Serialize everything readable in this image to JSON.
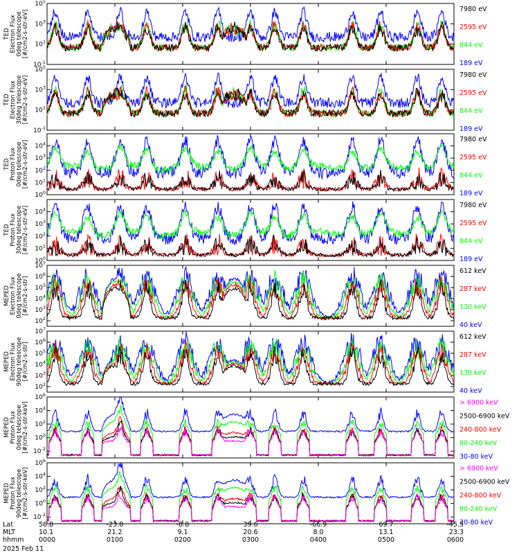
{
  "colors": {
    "black": "#000000",
    "red": "#ff0000",
    "green": "#00ff00",
    "blue": "#0000ff",
    "magenta": "#ff00ff"
  },
  "chart_data": [
    {
      "type": "line",
      "ylabel_lines": [
        "TED",
        "Electron Flux",
        "0deg telescope",
        "[#/cm2-s-str-eV]"
      ],
      "ytick_exponents": [
        -1,
        1,
        3,
        5
      ],
      "ylim_exp": [
        -1,
        5
      ],
      "series": [
        {
          "name": "7980 eV",
          "color": "black"
        },
        {
          "name": "2595 eV",
          "color": "red"
        },
        {
          "name": "844 eV",
          "color": "green"
        },
        {
          "name": "189 eV",
          "color": "blue"
        }
      ]
    },
    {
      "type": "line",
      "ylabel_lines": [
        "TED",
        "Electron Flux",
        "30deg telescope",
        "[#/cm2-s-str-eV]"
      ],
      "ytick_exponents": [
        -1,
        1,
        3,
        5
      ],
      "ylim_exp": [
        -1,
        5
      ],
      "series": [
        {
          "name": "7980 eV",
          "color": "black"
        },
        {
          "name": "2595 eV",
          "color": "red"
        },
        {
          "name": "844 eV",
          "color": "green"
        },
        {
          "name": "189 eV",
          "color": "blue"
        }
      ]
    },
    {
      "type": "line",
      "ylabel_lines": [
        "TED",
        "Proton Flux",
        "0deg telescope",
        "[#/cm2-s-str-eV]"
      ],
      "ytick_exponents": [
        0,
        1,
        2,
        3,
        4
      ],
      "ylim_exp": [
        0,
        5
      ],
      "series": [
        {
          "name": "7980 eV",
          "color": "black"
        },
        {
          "name": "2595 eV",
          "color": "red"
        },
        {
          "name": "844 eV",
          "color": "green"
        },
        {
          "name": "189 eV",
          "color": "blue"
        }
      ]
    },
    {
      "type": "line",
      "ylabel_lines": [
        "TED",
        "Proton Flux",
        "30deg telescope",
        "[#/cm2-s-str-eV]"
      ],
      "ytick_exponents": [
        0,
        1,
        2,
        3,
        4
      ],
      "ylim_exp": [
        0,
        5
      ],
      "series": [
        {
          "name": "7980 eV",
          "color": "black"
        },
        {
          "name": "2595 eV",
          "color": "red"
        },
        {
          "name": "844 eV",
          "color": "green"
        },
        {
          "name": "189 eV",
          "color": "blue"
        }
      ]
    },
    {
      "type": "line",
      "ylabel_lines": [
        "MEPED",
        "Electron Flux",
        "0deg telescope",
        "[#/cm2-s-str]"
      ],
      "ytick_exponents": [
        2,
        3,
        4,
        5,
        6,
        7
      ],
      "ylim_exp": [
        1.5,
        7
      ],
      "series": [
        {
          "name": "612 keV",
          "color": "black"
        },
        {
          "name": "287 keV",
          "color": "red"
        },
        {
          "name": "130 keV",
          "color": "green"
        },
        {
          "name": "40 keV",
          "color": "blue"
        }
      ]
    },
    {
      "type": "line",
      "ylabel_lines": [
        "MEPED",
        "Electron Flux",
        "90deg telescope",
        "[#/cm2-s-str]"
      ],
      "ytick_exponents": [
        2,
        3,
        4,
        5,
        6,
        7
      ],
      "ylim_exp": [
        1.5,
        7
      ],
      "series": [
        {
          "name": "612 keV",
          "color": "black"
        },
        {
          "name": "287 keV",
          "color": "red"
        },
        {
          "name": "130 keV",
          "color": "green"
        },
        {
          "name": "40 keV",
          "color": "blue"
        }
      ]
    },
    {
      "type": "line",
      "ylabel_lines": [
        "MEPED",
        "Proton Flux",
        "0deg telescope",
        "[#/cm2-s-str-keV]"
      ],
      "ytick_exponents": [
        -2,
        0,
        2,
        4,
        6
      ],
      "ylim_exp": [
        -3,
        6
      ],
      "series": [
        {
          "name": "> 6900 keV",
          "color": "magenta"
        },
        {
          "name": "2500-6900 keV",
          "color": "black"
        },
        {
          "name": "240-800 keV",
          "color": "red"
        },
        {
          "name": "80-240 keV",
          "color": "green"
        },
        {
          "name": "30-80 keV",
          "color": "blue"
        }
      ]
    },
    {
      "type": "line",
      "ylabel_lines": [
        "MEPED",
        "Proton Flux",
        "90deg telescope",
        "[#/cm2-s-str-keV]"
      ],
      "ytick_exponents": [
        -2,
        0,
        2,
        4,
        6
      ],
      "ylim_exp": [
        -3,
        6
      ],
      "series": [
        {
          "name": "> 6900 keV",
          "color": "magenta"
        },
        {
          "name": "2500-6900 keV",
          "color": "black"
        },
        {
          "name": "240-800 keV",
          "color": "red"
        },
        {
          "name": "80-240 keV",
          "color": "green"
        },
        {
          "name": "30-80 keV",
          "color": "blue"
        }
      ]
    }
  ],
  "x_axis": {
    "row_labels": [
      "Lat",
      "MLT",
      "hhmm"
    ],
    "ticks": [
      {
        "lat": "56.8",
        "mlt": "10.1",
        "hhmm": "0000"
      },
      {
        "lat": "-23.8",
        "mlt": "21.2",
        "hhmm": "0100"
      },
      {
        "lat": "-8.8",
        "mlt": "9.1",
        "hhmm": "0200"
      },
      {
        "lat": "39.6",
        "mlt": "20.6",
        "hhmm": "0300"
      },
      {
        "lat": "-66.9",
        "mlt": "8.0",
        "hhmm": "0400"
      },
      {
        "lat": "69.7",
        "mlt": "13.1",
        "hhmm": "0500"
      },
      {
        "lat": "-45.5",
        "mlt": "23.3",
        "hhmm": "0600"
      }
    ],
    "date": "2025 Feb 11"
  }
}
